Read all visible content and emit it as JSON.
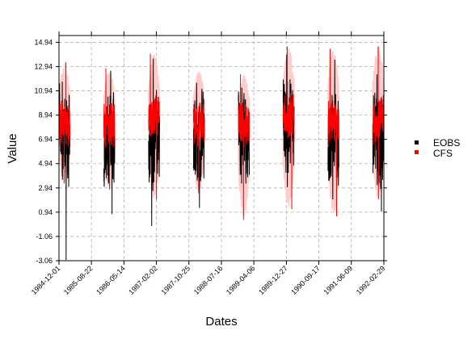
{
  "chart_data": {
    "type": "line",
    "title": "",
    "xlabel": "Dates",
    "ylabel": "Value",
    "ylim": [
      -3.06,
      15.5
    ],
    "yticks": [
      "-3.06",
      "-1.06",
      "0.94",
      "2.94",
      "4.94",
      "6.94",
      "8.94",
      "10.94",
      "12.94",
      "14.94"
    ],
    "xticks": [
      "1984-12-01",
      "1985-08-22",
      "1986-05-14",
      "1987-02-02",
      "1987-10-25",
      "1988-07-16",
      "1989-04-06",
      "1989-12-27",
      "1990-09-17",
      "1991-06-09",
      "1992-02-29"
    ],
    "grid": true,
    "legend_position": "right",
    "series": [
      {
        "name": "EOBS",
        "color": "#000000",
        "segments": [
          {
            "start": "1984-12-01",
            "end": "1985-02-28",
            "mean": 7.2,
            "min": -3.0,
            "max": 11.7
          },
          {
            "start": "1985-12-01",
            "end": "1986-02-28",
            "mean": 6.9,
            "min": 0.8,
            "max": 12.6
          },
          {
            "start": "1986-12-01",
            "end": "1987-02-28",
            "mean": 6.9,
            "min": -0.2,
            "max": 13.6
          },
          {
            "start": "1987-12-01",
            "end": "1988-02-29",
            "mean": 7.1,
            "min": 1.3,
            "max": 11.6
          },
          {
            "start": "1988-12-01",
            "end": "1989-02-28",
            "mean": 7.2,
            "min": 3.3,
            "max": 11.2
          },
          {
            "start": "1989-12-01",
            "end": "1990-02-28",
            "mean": 8.0,
            "min": 3.0,
            "max": 13.9
          },
          {
            "start": "1990-12-01",
            "end": "1991-02-28",
            "mean": 7.0,
            "min": 2.0,
            "max": 13.5
          },
          {
            "start": "1991-12-01",
            "end": "1992-02-29",
            "mean": 7.0,
            "min": 1.0,
            "max": 12.3
          }
        ]
      },
      {
        "name": "CFS",
        "color": "#ff0000",
        "spread_color": "#ffcccc",
        "segments": [
          {
            "start": "1984-12-01",
            "end": "1985-02-28",
            "mean": 8.3,
            "min": 3.3,
            "max": 13.3
          },
          {
            "start": "1985-12-01",
            "end": "1986-02-28",
            "mean": 8.0,
            "min": 2.8,
            "max": 12.8
          },
          {
            "start": "1986-12-01",
            "end": "1987-02-28",
            "mean": 8.5,
            "min": 2.0,
            "max": 14.0
          },
          {
            "start": "1987-12-01",
            "end": "1988-02-29",
            "mean": 8.2,
            "min": 2.5,
            "max": 12.6
          },
          {
            "start": "1988-12-01",
            "end": "1989-02-28",
            "mean": 8.0,
            "min": 0.3,
            "max": 12.3
          },
          {
            "start": "1989-12-01",
            "end": "1990-02-28",
            "mean": 8.6,
            "min": 1.2,
            "max": 14.6
          },
          {
            "start": "1990-12-01",
            "end": "1991-02-28",
            "mean": 8.2,
            "min": 0.6,
            "max": 14.4
          },
          {
            "start": "1991-12-01",
            "end": "1992-02-29",
            "mean": 8.6,
            "min": 2.0,
            "max": 14.6
          }
        ]
      }
    ]
  }
}
